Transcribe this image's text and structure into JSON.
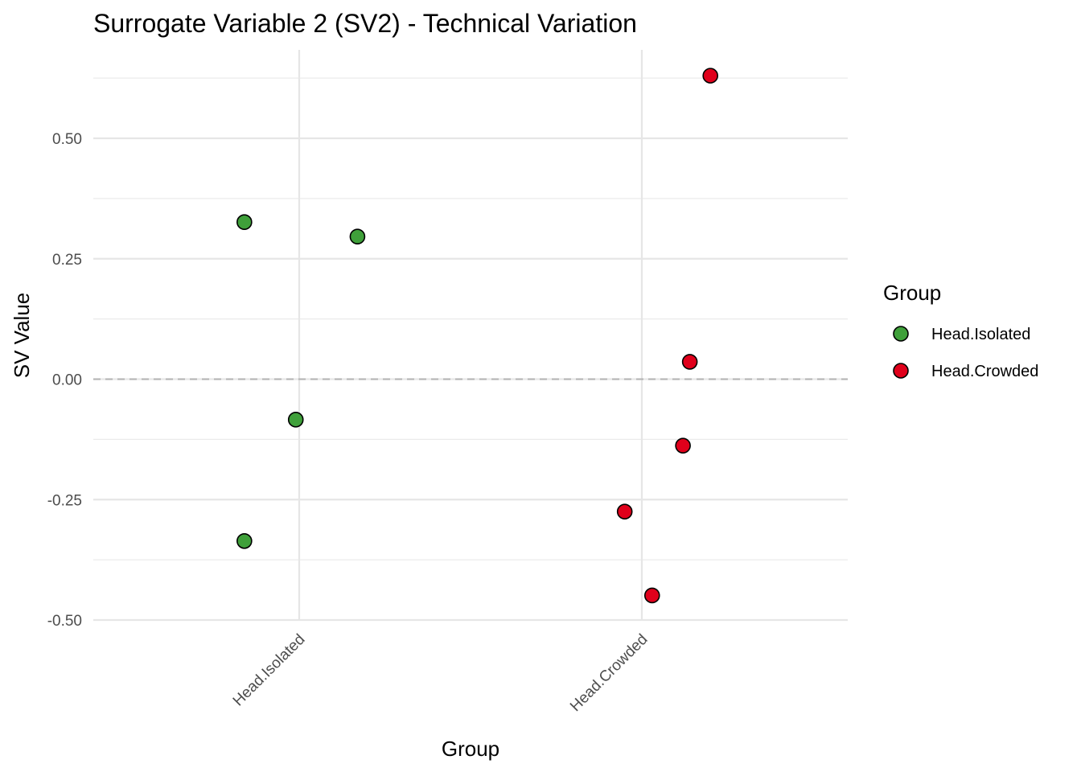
{
  "chart_data": {
    "type": "scatter",
    "title": "Surrogate Variable 2 (SV2) - Technical Variation",
    "xlabel": "Group",
    "ylabel": "SV Value",
    "categories": [
      "Head.Isolated",
      "Head.Crowded"
    ],
    "y_ticks": [
      0.5,
      0.25,
      0.0,
      -0.25,
      -0.5
    ],
    "y_tick_labels": [
      "0.50",
      "0.25",
      "0.00",
      "-0.25",
      "-0.50"
    ],
    "ylim": [
      -0.5,
      0.63
    ],
    "reference_line": {
      "y": 0.0,
      "style": "dashed"
    },
    "grid": true,
    "legend": {
      "title": "Group",
      "position": "right",
      "entries": [
        {
          "label": "Head.Isolated",
          "color": "#3fa03a"
        },
        {
          "label": "Head.Crowded",
          "color": "#e0001b"
        }
      ]
    },
    "series": [
      {
        "name": "Head.Isolated",
        "color": "#3fa03a",
        "points": [
          {
            "category": "Head.Isolated",
            "jitter": -0.16,
            "y": 0.326
          },
          {
            "category": "Head.Isolated",
            "jitter": 0.17,
            "y": 0.296
          },
          {
            "category": "Head.Isolated",
            "jitter": -0.01,
            "y": -0.084
          },
          {
            "category": "Head.Isolated",
            "jitter": -0.16,
            "y": -0.336
          }
        ]
      },
      {
        "name": "Head.Crowded",
        "color": "#e0001b",
        "points": [
          {
            "category": "Head.Crowded",
            "jitter": 0.2,
            "y": 0.63
          },
          {
            "category": "Head.Crowded",
            "jitter": 0.14,
            "y": 0.036
          },
          {
            "category": "Head.Crowded",
            "jitter": 0.12,
            "y": -0.138
          },
          {
            "category": "Head.Crowded",
            "jitter": -0.05,
            "y": -0.275
          },
          {
            "category": "Head.Crowded",
            "jitter": 0.03,
            "y": -0.449
          }
        ]
      }
    ]
  }
}
